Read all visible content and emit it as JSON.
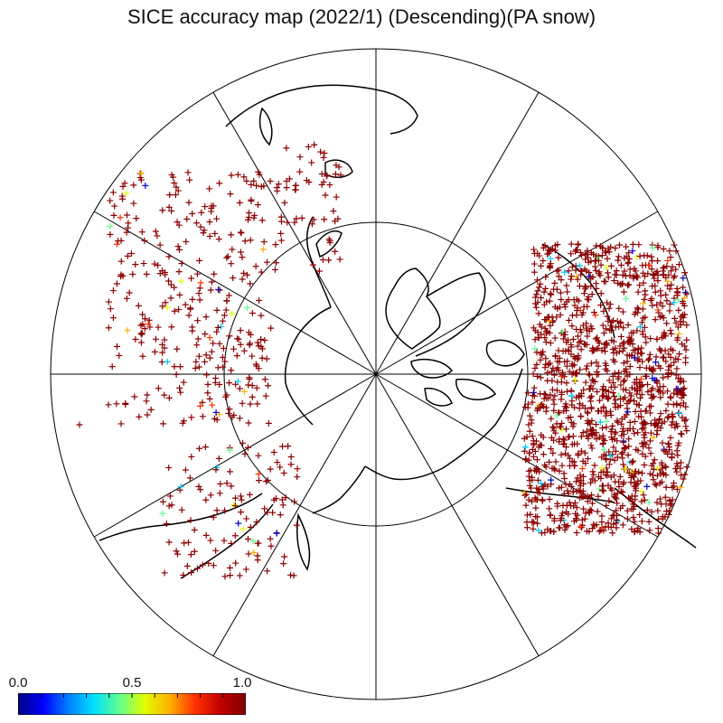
{
  "title": "SICE accuracy map (2022/1) (Descending)(PA snow)",
  "map": {
    "projection": "north-polar-stereographic",
    "meridian_spokes": 12,
    "latitude_circles": 2,
    "marker": "+"
  },
  "colorbar": {
    "min_label": "0.0",
    "mid_label": "0.5",
    "max_label": "1.0",
    "colors": [
      "#000080",
      "#0000ff",
      "#0080ff",
      "#00e0ff",
      "#60ff90",
      "#e0ff00",
      "#ffb000",
      "#ff3000",
      "#c00000",
      "#800000"
    ]
  },
  "colors": {
    "dominant_marker": "#8b0000",
    "land_outline": "#000000"
  }
}
